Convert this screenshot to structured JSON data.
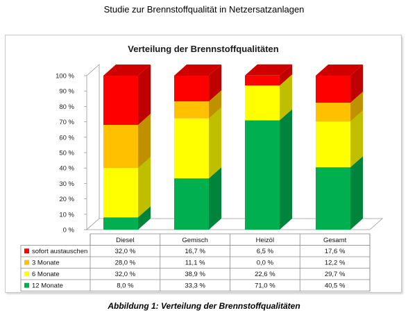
{
  "page_title": "Studie zur Brennstoffqualität in Netzersatzanlagen",
  "caption": "Abbildung 1: Verteilung der Brennstoffqualitäten",
  "chart_data": {
    "type": "bar",
    "stacked": true,
    "three_d": true,
    "title": "Verteilung der Brennstoffqualitäten",
    "xlabel": "",
    "ylabel": "",
    "ylim": [
      0,
      100
    ],
    "yticks": [
      "0 %",
      "10 %",
      "20 %",
      "30 %",
      "40 %",
      "50 %",
      "60 %",
      "70 %",
      "80 %",
      "90 %",
      "100 %"
    ],
    "grid": false,
    "legend": "data-table-left",
    "categories": [
      "Diesel",
      "Gemisch",
      "Heizöl",
      "Gesamt"
    ],
    "series": [
      {
        "name": "sofort austauschen",
        "color": "#ff0000",
        "values": [
          32.0,
          16.7,
          6.5,
          17.6
        ],
        "labels": [
          "32,0 %",
          "16,7 %",
          "6,5 %",
          "17,6 %"
        ]
      },
      {
        "name": "3 Monate",
        "color": "#ffc000",
        "values": [
          28.0,
          11.1,
          0.0,
          12.2
        ],
        "labels": [
          "28,0 %",
          "11,1 %",
          "0,0 %",
          "12,2 %"
        ]
      },
      {
        "name": "6 Monate",
        "color": "#ffff00",
        "values": [
          32.0,
          38.9,
          22.6,
          29.7
        ],
        "labels": [
          "32,0 %",
          "38,9 %",
          "22,6 %",
          "29,7 %"
        ]
      },
      {
        "name": "12 Monate",
        "color": "#00b050",
        "values": [
          8.0,
          33.3,
          71.0,
          40.5
        ],
        "labels": [
          "8,0 %",
          "33,3 %",
          "71,0 %",
          "40,5 %"
        ]
      }
    ]
  }
}
